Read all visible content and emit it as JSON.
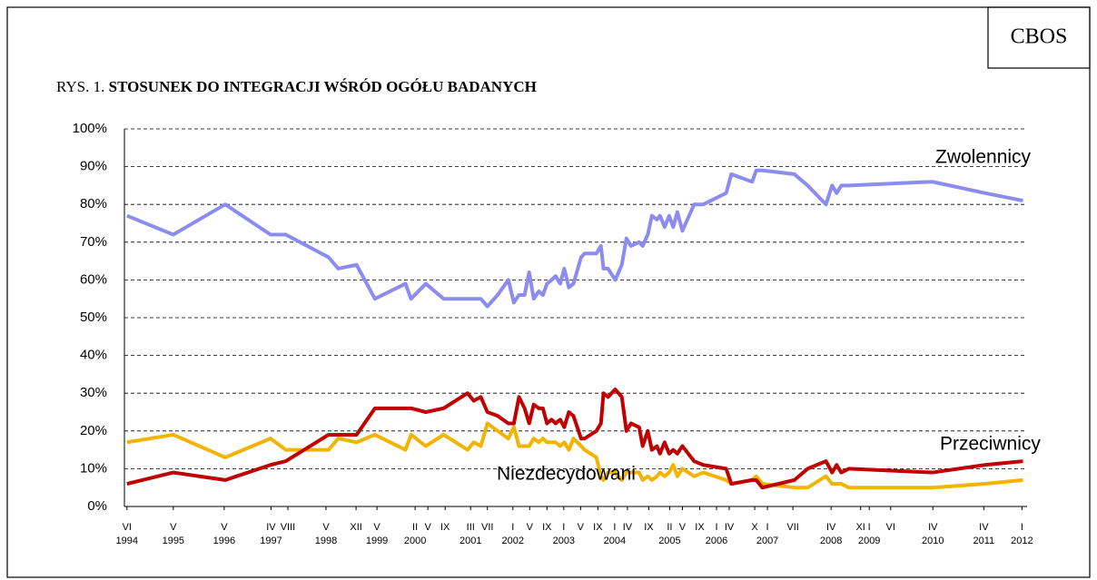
{
  "chart_data": {
    "type": "line",
    "source": "CBOS",
    "figure_label": "RYS. 1.",
    "title": "STOSUNEK DO INTEGRACJI WŚRÓD OGÓŁU BADANYCH",
    "x": [
      1994.42,
      1995.33,
      1996.35,
      1997.24,
      1997.54,
      1998.38,
      1998.57,
      1998.93,
      1999.29,
      1999.89,
      2000.0,
      2000.29,
      2000.64,
      2001.11,
      2001.23,
      2001.37,
      2001.5,
      2001.7,
      2001.91,
      2002.02,
      2002.12,
      2002.23,
      2002.32,
      2002.41,
      2002.51,
      2002.59,
      2002.67,
      2002.76,
      2002.84,
      2002.93,
      2003.01,
      2003.1,
      2003.19,
      2003.34,
      2003.41,
      2003.64,
      2003.73,
      2003.78,
      2003.87,
      2004.01,
      2004.14,
      2004.23,
      2004.32,
      2004.48,
      2004.55,
      2004.65,
      2004.73,
      2004.83,
      2004.89,
      2004.98,
      2005.07,
      2005.15,
      2005.23,
      2005.33,
      2005.56,
      2005.74,
      2006.19,
      2006.29,
      2006.7,
      2006.78,
      2006.9,
      2007.53,
      2007.79,
      2008.15,
      2008.27,
      2008.36,
      2008.45,
      2008.6,
      2010.24,
      2011.27,
      2012.02
    ],
    "series": [
      {
        "name": "Zwolennicy",
        "color": "#8c8cf0",
        "values": [
          77,
          72,
          80,
          72,
          72,
          66,
          63,
          64,
          55,
          59,
          55,
          59,
          55,
          55,
          55,
          55,
          53,
          56,
          60,
          54,
          56,
          56,
          62,
          55,
          57,
          56,
          59,
          60,
          61,
          59,
          63,
          58,
          59,
          66,
          67,
          67,
          69,
          63,
          63,
          60,
          64,
          71,
          69,
          70,
          69,
          72,
          77,
          76,
          77,
          74,
          77,
          74,
          78,
          73,
          80,
          80,
          83,
          88,
          86,
          89,
          89,
          88,
          85,
          80,
          85,
          83,
          85,
          85,
          86,
          83,
          81
        ]
      },
      {
        "name": "Przeciwnicy",
        "color": "#c00000",
        "values": [
          6,
          9,
          7,
          11,
          12,
          19,
          19,
          19,
          26,
          26,
          26,
          25,
          26,
          30,
          28,
          29,
          25,
          24,
          22,
          22,
          29,
          26,
          22,
          27,
          26,
          26,
          22,
          23,
          22,
          23,
          21,
          25,
          24,
          18,
          18,
          20,
          22,
          30,
          29,
          31,
          29,
          20,
          22,
          21,
          16,
          20,
          15,
          16,
          14,
          17,
          14,
          15,
          14,
          16,
          12,
          11,
          10,
          6,
          7,
          7,
          5,
          7,
          10,
          12,
          9,
          11,
          9,
          10,
          9,
          11,
          12
        ]
      },
      {
        "name": "Niezdecydowani",
        "color": "#f2b400",
        "values": [
          17,
          19,
          13,
          18,
          15,
          15,
          18,
          17,
          19,
          15,
          19,
          16,
          19,
          15,
          17,
          16,
          22,
          20,
          18,
          21,
          16,
          16,
          16,
          18,
          17,
          18,
          17,
          17,
          17,
          16,
          17,
          15,
          18,
          16,
          15,
          13,
          8,
          7,
          9,
          9,
          7,
          9,
          9,
          9,
          7,
          8,
          7,
          8,
          9,
          8,
          9,
          11,
          8,
          10,
          8,
          9,
          7,
          6,
          7,
          8,
          6,
          5,
          5,
          8,
          6,
          6,
          6,
          5,
          5,
          6,
          7
        ]
      }
    ],
    "xlim": [
      1994.37,
      2012.1
    ],
    "xticks": [
      {
        "value": 1994.42,
        "label": "VI"
      },
      {
        "value": 1995.33,
        "label": "V"
      },
      {
        "value": 1996.33,
        "label": "V"
      },
      {
        "value": 1997.25,
        "label": "IV"
      },
      {
        "value": 1997.58,
        "label": "VIII"
      },
      {
        "value": 1998.33,
        "label": "V"
      },
      {
        "value": 1998.92,
        "label": "XII"
      },
      {
        "value": 1999.33,
        "label": "V"
      },
      {
        "value": 2000.08,
        "label": "II"
      },
      {
        "value": 2000.33,
        "label": "V"
      },
      {
        "value": 2000.67,
        "label": "IX"
      },
      {
        "value": 2001.17,
        "label": "III"
      },
      {
        "value": 2001.5,
        "label": "VII"
      },
      {
        "value": 2002.0,
        "label": "I"
      },
      {
        "value": 2002.33,
        "label": "V"
      },
      {
        "value": 2002.67,
        "label": "IX"
      },
      {
        "value": 2003.0,
        "label": "I"
      },
      {
        "value": 2003.33,
        "label": "V"
      },
      {
        "value": 2003.67,
        "label": "IX"
      },
      {
        "value": 2004.0,
        "label": "I"
      },
      {
        "value": 2004.25,
        "label": "IV"
      },
      {
        "value": 2004.67,
        "label": "IX"
      },
      {
        "value": 2005.08,
        "label": "II"
      },
      {
        "value": 2005.33,
        "label": "V"
      },
      {
        "value": 2005.67,
        "label": "IX"
      },
      {
        "value": 2006.0,
        "label": "I"
      },
      {
        "value": 2006.25,
        "label": "IV"
      },
      {
        "value": 2006.75,
        "label": "X"
      },
      {
        "value": 2007.0,
        "label": "I"
      },
      {
        "value": 2007.5,
        "label": "VII"
      },
      {
        "value": 2008.25,
        "label": "IV"
      },
      {
        "value": 2008.83,
        "label": "XI"
      },
      {
        "value": 2009.0,
        "label": "I"
      },
      {
        "value": 2009.42,
        "label": "VI"
      },
      {
        "value": 2010.25,
        "label": "IV"
      },
      {
        "value": 2011.25,
        "label": "IV"
      },
      {
        "value": 2012.0,
        "label": "I"
      }
    ],
    "xticks_year": [
      {
        "value": 1994.42,
        "label": "1994"
      },
      {
        "value": 1995.33,
        "label": "1995"
      },
      {
        "value": 1996.33,
        "label": "1996"
      },
      {
        "value": 1997.25,
        "label": "1997"
      },
      {
        "value": 1998.33,
        "label": "1998"
      },
      {
        "value": 1999.33,
        "label": "1999"
      },
      {
        "value": 2000.08,
        "label": "2000"
      },
      {
        "value": 2001.17,
        "label": "2001"
      },
      {
        "value": 2002.0,
        "label": "2002"
      },
      {
        "value": 2003.0,
        "label": "2003"
      },
      {
        "value": 2004.0,
        "label": "2004"
      },
      {
        "value": 2005.08,
        "label": "2005"
      },
      {
        "value": 2006.0,
        "label": "2006"
      },
      {
        "value": 2007.0,
        "label": "2007"
      },
      {
        "value": 2008.25,
        "label": "2008"
      },
      {
        "value": 2009.0,
        "label": "2009"
      },
      {
        "value": 2010.25,
        "label": "2010"
      },
      {
        "value": 2011.25,
        "label": "2011"
      },
      {
        "value": 2012.0,
        "label": "2012"
      }
    ],
    "ylim": [
      0,
      100
    ],
    "yticks": [
      {
        "value": 0,
        "label": "0%"
      },
      {
        "value": 10,
        "label": "10%"
      },
      {
        "value": 20,
        "label": "20%"
      },
      {
        "value": 30,
        "label": "30%"
      },
      {
        "value": 40,
        "label": "40%"
      },
      {
        "value": 50,
        "label": "50%"
      },
      {
        "value": 60,
        "label": "60%"
      },
      {
        "value": 70,
        "label": "70%"
      },
      {
        "value": 80,
        "label": "80%"
      },
      {
        "value": 90,
        "label": "90%"
      },
      {
        "value": 100,
        "label": "100%"
      }
    ],
    "grid": true
  }
}
